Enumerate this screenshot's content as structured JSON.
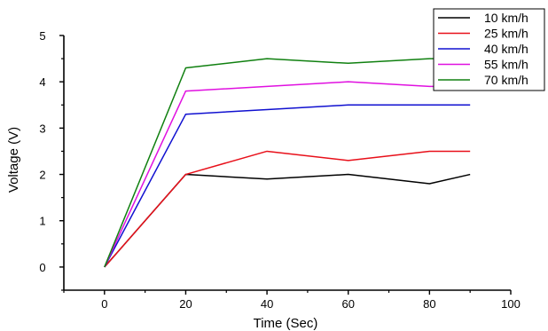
{
  "chart_data": {
    "type": "line",
    "title": "",
    "xlabel": "Time (Sec)",
    "ylabel": "Voltage (V)",
    "xlim": [
      -10,
      100
    ],
    "ylim": [
      -0.5,
      5
    ],
    "xticks": [
      0,
      20,
      40,
      60,
      80,
      100
    ],
    "yticks": [
      0,
      1,
      2,
      3,
      4,
      5
    ],
    "x": [
      0,
      20,
      40,
      60,
      80,
      90
    ],
    "grid": false,
    "legend_position": "top-right",
    "series": [
      {
        "name": "10 km/h",
        "color": "#000000",
        "values": [
          0,
          2.0,
          1.9,
          2.0,
          1.8,
          2.0
        ]
      },
      {
        "name": "25 km/h",
        "color": "#e8101a",
        "values": [
          0,
          2.0,
          2.5,
          2.3,
          2.5,
          2.5
        ]
      },
      {
        "name": "40 km/h",
        "color": "#1010d0",
        "values": [
          0,
          3.3,
          3.4,
          3.5,
          3.5,
          3.5
        ]
      },
      {
        "name": "55 km/h",
        "color": "#e010e0",
        "values": [
          0,
          3.8,
          3.9,
          4.0,
          3.9,
          3.9
        ]
      },
      {
        "name": "70 km/h",
        "color": "#108010",
        "values": [
          0,
          4.3,
          4.5,
          4.4,
          4.5,
          4.5
        ]
      }
    ]
  }
}
